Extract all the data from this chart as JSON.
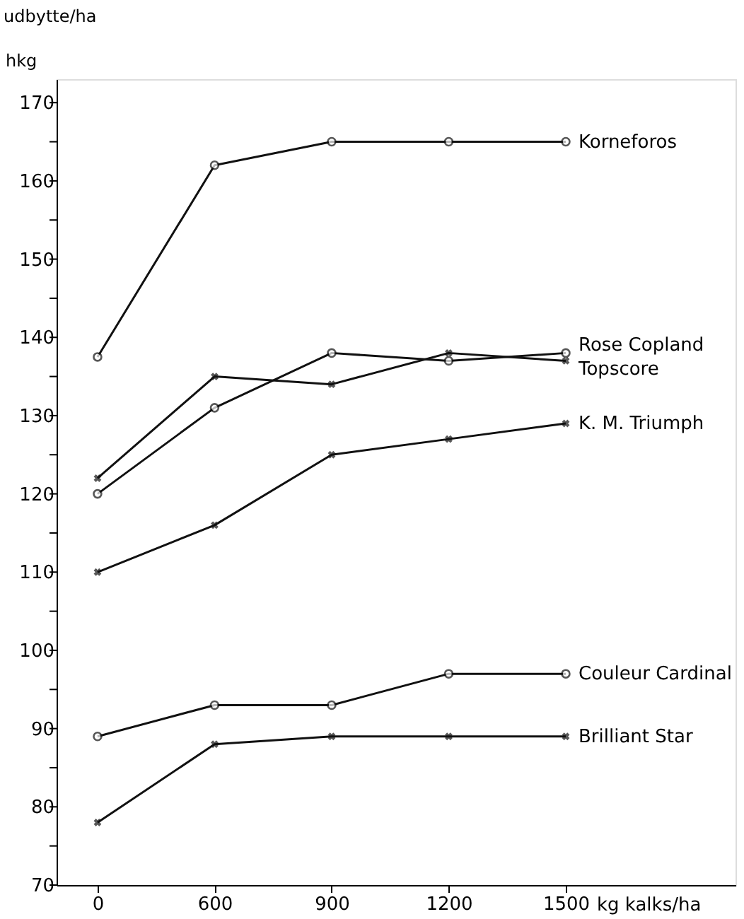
{
  "chart_data": {
    "type": "line",
    "ylabel": "udbytte/ha",
    "xlabel": "kg kalks/ha",
    "annotations": [
      "hkg"
    ],
    "categories": [
      "0",
      "600",
      "900",
      "1200",
      "1500"
    ],
    "series": [
      {
        "name": "Korneforos",
        "color": "#111111",
        "marker": "circle",
        "values": [
          137.5,
          162,
          165,
          165,
          165
        ]
      },
      {
        "name": "Rose Copland",
        "color": "#111111",
        "marker": "circle",
        "values": [
          120,
          131,
          138,
          137,
          138
        ]
      },
      {
        "name": "Topscore",
        "color": "#111111",
        "marker": "cross",
        "values": [
          122,
          135,
          134,
          138,
          137
        ]
      },
      {
        "name": "K. M. Triumph",
        "color": "#111111",
        "marker": "cross",
        "values": [
          110,
          116,
          125,
          127,
          129
        ]
      },
      {
        "name": "Couleur Cardinal",
        "color": "#111111",
        "marker": "circle",
        "values": [
          89,
          93,
          93,
          97,
          97
        ]
      },
      {
        "name": "Brilliant Star",
        "color": "#111111",
        "marker": "cross",
        "values": [
          78,
          88,
          89,
          89,
          89
        ]
      }
    ],
    "ylim": [
      70,
      173
    ],
    "yticks": [
      70,
      {
        "value": 75,
        "label": null
      },
      80,
      {
        "value": 85,
        "label": null
      },
      90,
      {
        "value": 95,
        "label": null
      },
      100,
      {
        "value": 105,
        "label": null
      },
      110,
      {
        "value": 115,
        "label": null
      },
      120,
      {
        "value": 125,
        "label": null
      },
      130,
      {
        "value": 135,
        "label": null
      },
      140,
      {
        "value": 145,
        "label": null
      },
      150,
      {
        "value": 155,
        "label": null
      },
      160,
      {
        "value": 165,
        "label": null
      },
      170
    ],
    "grid": false,
    "line_style": "solid"
  }
}
